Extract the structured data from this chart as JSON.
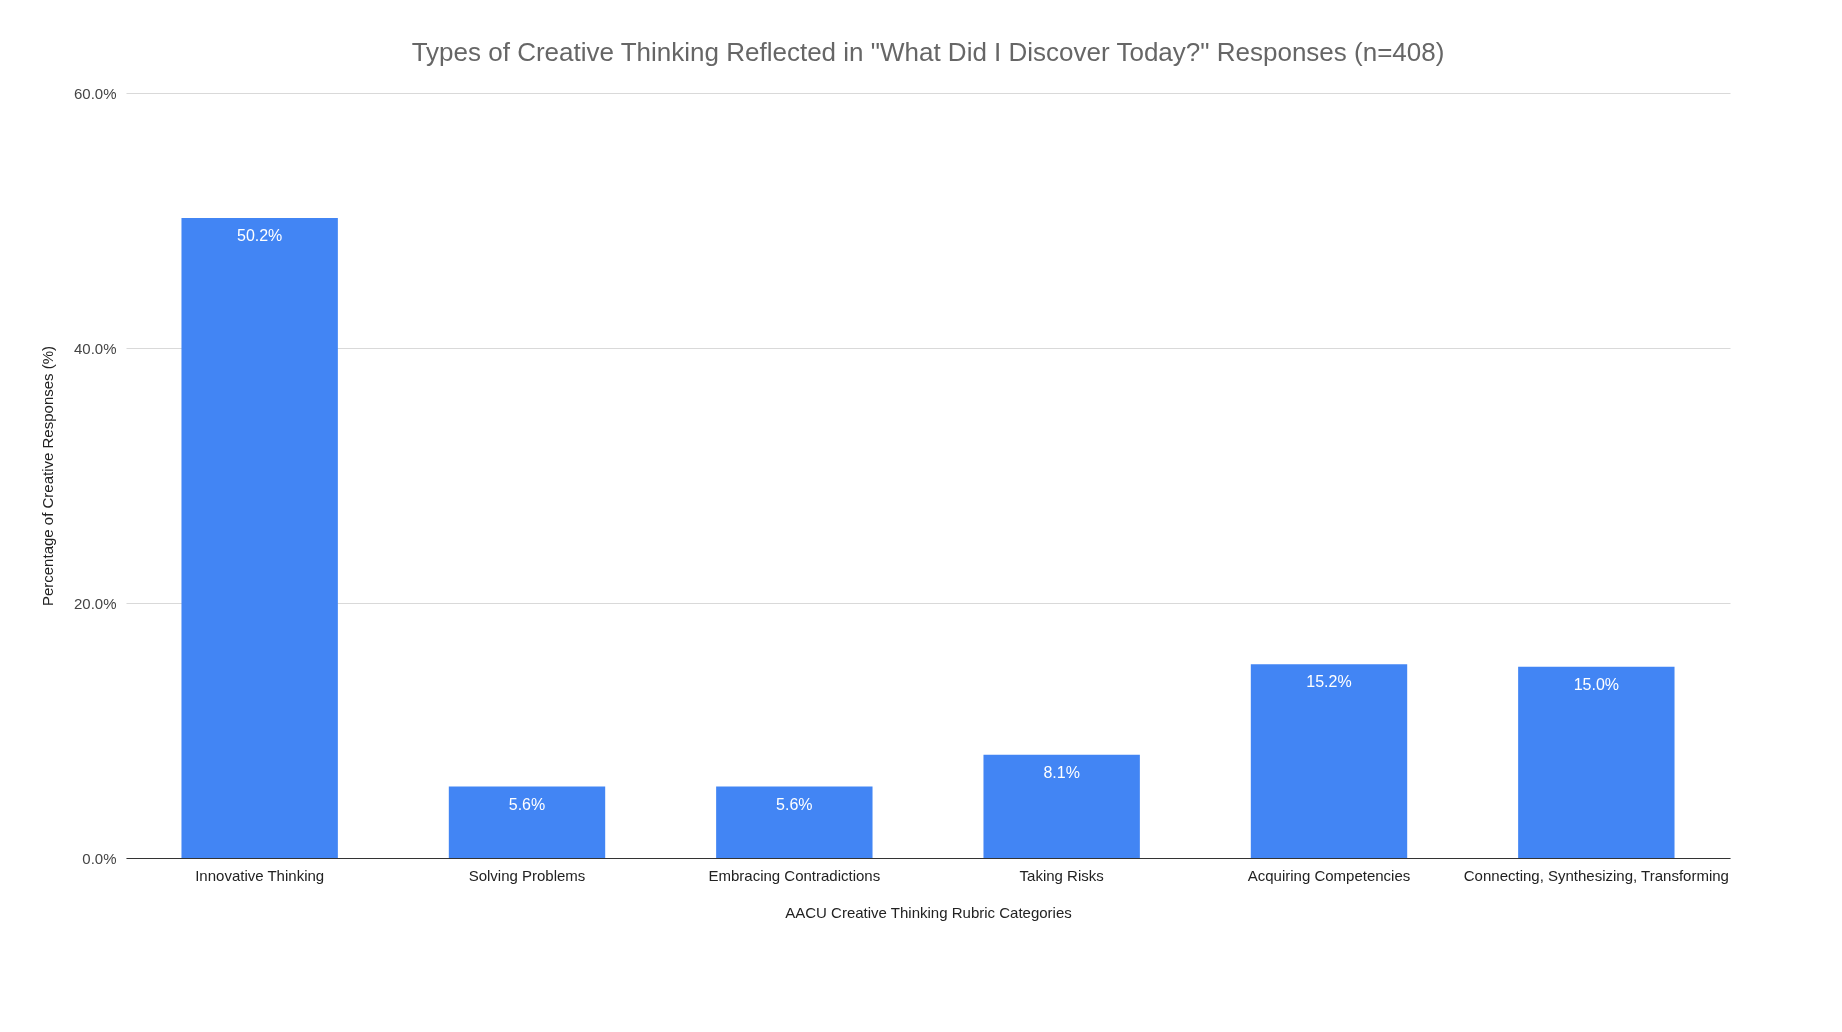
{
  "chart_data": {
    "type": "bar",
    "title": "Types of Creative Thinking Reflected in \"What Did I Discover Today?\" Responses (n=408)",
    "xlabel": "AACU Creative Thinking Rubric Categories",
    "ylabel": "Percentage of Creative Responses (%)",
    "categories": [
      "Innovative Thinking",
      "Solving Problems",
      "Embracing Contradictions",
      "Taking Risks",
      "Acquiring Competencies",
      "Connecting, Synthesizing, Transforming"
    ],
    "values": [
      50.2,
      5.6,
      5.6,
      8.1,
      15.2,
      15.0
    ],
    "value_labels": [
      "50.2%",
      "5.6%",
      "5.6%",
      "8.1%",
      "15.2%",
      "15.0%"
    ],
    "color": "#4285f4",
    "ylim": [
      0,
      60
    ],
    "yticks": [
      {
        "value": 0,
        "label": "0.0%"
      },
      {
        "value": 20,
        "label": "20.0%"
      },
      {
        "value": 40,
        "label": "40.0%"
      },
      {
        "value": 60,
        "label": "60.0%"
      }
    ],
    "grid": "y"
  }
}
